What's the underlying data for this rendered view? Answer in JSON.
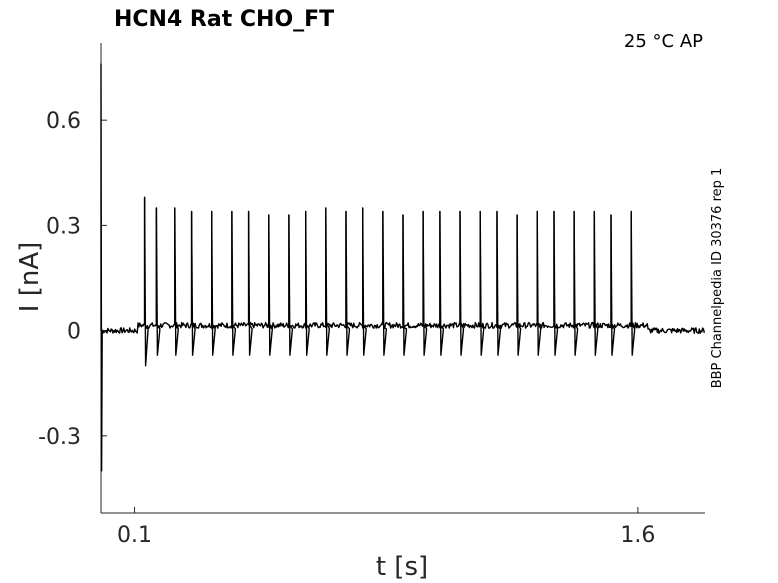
{
  "chart_data": {
    "type": "line",
    "title": "HCN4  Rat  CHO_FT",
    "annotation": "25 °C  AP",
    "side_label": "BBP Channelpedia ID 30376 rep 1",
    "xlabel": "t [s]",
    "ylabel": "I [nA]",
    "xlim": [
      0.0,
      1.8
    ],
    "ylim": [
      -0.52,
      0.82
    ],
    "x_ticks": [
      {
        "value": 0.1,
        "label": "0.1"
      },
      {
        "value": 1.6,
        "label": "1.6"
      }
    ],
    "y_ticks": [
      {
        "value": 0.6,
        "label": "0.6"
      },
      {
        "value": 0.3,
        "label": "0.3"
      },
      {
        "value": 0,
        "label": "0"
      },
      {
        "value": -0.3,
        "label": "-0.3"
      }
    ],
    "grid": false,
    "line_color": "#000000",
    "series": [
      {
        "baseline": 0.0,
        "plateau": 0.015,
        "initial_transient": {
          "t": 0.0,
          "peak": 0.76,
          "trough": -0.4
        },
        "spike_trough": -0.07,
        "spikes": [
          {
            "t": 0.13,
            "peak": 0.38,
            "trough": -0.1
          },
          {
            "t": 0.165,
            "peak": 0.35
          },
          {
            "t": 0.22,
            "peak": 0.35
          },
          {
            "t": 0.27,
            "peak": 0.34
          },
          {
            "t": 0.33,
            "peak": 0.34
          },
          {
            "t": 0.39,
            "peak": 0.34
          },
          {
            "t": 0.44,
            "peak": 0.34
          },
          {
            "t": 0.5,
            "peak": 0.33
          },
          {
            "t": 0.56,
            "peak": 0.33
          },
          {
            "t": 0.61,
            "peak": 0.34
          },
          {
            "t": 0.67,
            "peak": 0.35
          },
          {
            "t": 0.73,
            "peak": 0.34
          },
          {
            "t": 0.78,
            "peak": 0.35
          },
          {
            "t": 0.84,
            "peak": 0.34
          },
          {
            "t": 0.9,
            "peak": 0.33
          },
          {
            "t": 0.96,
            "peak": 0.34
          },
          {
            "t": 1.01,
            "peak": 0.34
          },
          {
            "t": 1.07,
            "peak": 0.34
          },
          {
            "t": 1.13,
            "peak": 0.34
          },
          {
            "t": 1.18,
            "peak": 0.34
          },
          {
            "t": 1.24,
            "peak": 0.33
          },
          {
            "t": 1.3,
            "peak": 0.34
          },
          {
            "t": 1.35,
            "peak": 0.34
          },
          {
            "t": 1.41,
            "peak": 0.34
          },
          {
            "t": 1.47,
            "peak": 0.34
          },
          {
            "t": 1.52,
            "peak": 0.33
          },
          {
            "t": 1.58,
            "peak": 0.34
          }
        ],
        "step_end": 1.63,
        "end": 1.8
      }
    ]
  }
}
